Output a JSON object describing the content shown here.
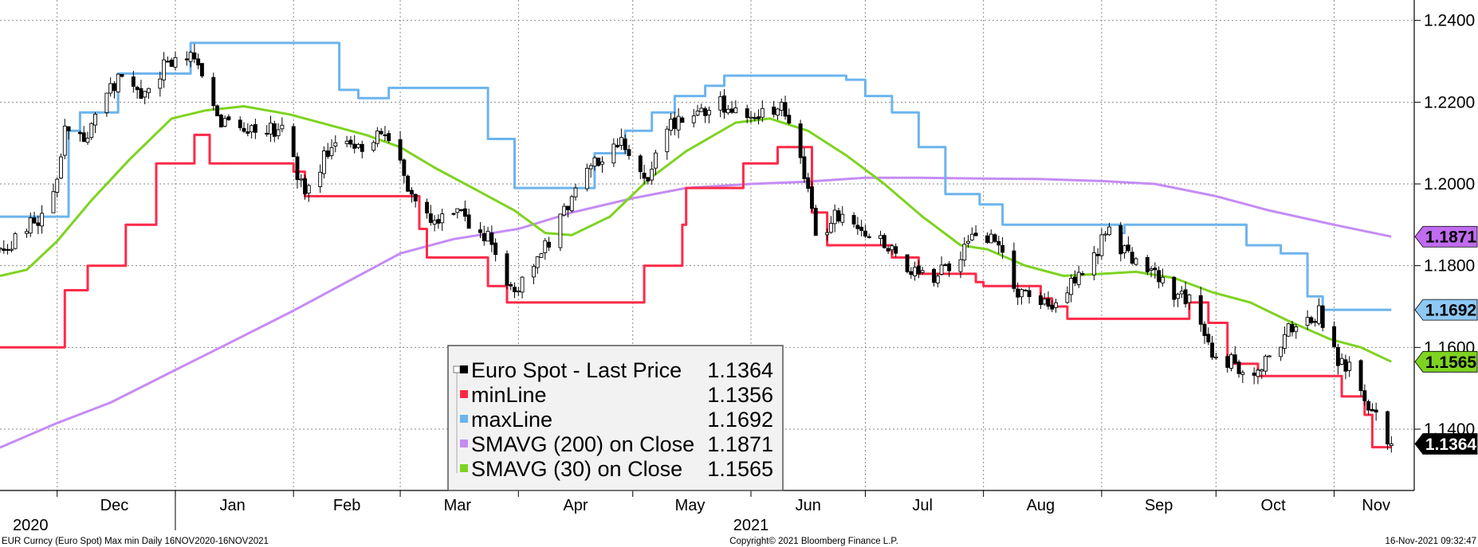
{
  "chart_data": {
    "type": "line",
    "title": "",
    "xlabel": "",
    "ylabel": "",
    "ylim": [
      1.125,
      1.245
    ],
    "xlim": [
      "2020-11-16",
      "2021-11-22"
    ],
    "y_ticks": [
      "1.1400",
      "1.1600",
      "1.1800",
      "1.2000",
      "1.2200",
      "1.2400"
    ],
    "y_tick_values": [
      1.14,
      1.16,
      1.18,
      1.2,
      1.22,
      1.24
    ],
    "month_ticks": [
      {
        "label": "Dec",
        "boundary": "2020-12-01",
        "center": "2020-12-16"
      },
      {
        "label": "Jan",
        "boundary": "2021-01-01",
        "center": "2021-01-16"
      },
      {
        "label": "Feb",
        "boundary": "2021-02-01",
        "center": "2021-02-15"
      },
      {
        "label": "Mar",
        "boundary": "2021-03-01",
        "center": "2021-03-16"
      },
      {
        "label": "Apr",
        "boundary": "2021-04-01",
        "center": "2021-04-16"
      },
      {
        "label": "May",
        "boundary": "2021-05-01",
        "center": "2021-05-16"
      },
      {
        "label": "Jun",
        "boundary": "2021-06-01",
        "center": "2021-06-16"
      },
      {
        "label": "Jul",
        "boundary": "2021-07-01",
        "center": "2021-07-16"
      },
      {
        "label": "Aug",
        "boundary": "2021-08-01",
        "center": "2021-08-16"
      },
      {
        "label": "Sep",
        "boundary": "2021-09-01",
        "center": "2021-09-16"
      },
      {
        "label": "Oct",
        "boundary": "2021-10-01",
        "center": "2021-10-16"
      },
      {
        "label": "Nov",
        "boundary": "2021-11-01",
        "center": "2021-11-12"
      }
    ],
    "year_labels": [
      {
        "label": "2020",
        "date": "2020-11-24"
      },
      {
        "label": "2021",
        "date": "2021-06-01"
      }
    ],
    "year_boundary": "2021-01-01",
    "grid": true,
    "legend_position": "bottom-center",
    "series": [
      {
        "name": "Euro Spot - Last Price",
        "legend_value": "1.1364",
        "style": "candlestick",
        "color": "#000000",
        "anchors": [
          [
            "2020-11-16",
            1.184
          ],
          [
            "2020-11-23",
            1.189
          ],
          [
            "2020-11-30",
            1.196
          ],
          [
            "2020-12-03",
            1.212
          ],
          [
            "2020-12-08",
            1.21
          ],
          [
            "2020-12-17",
            1.226
          ],
          [
            "2020-12-22",
            1.222
          ],
          [
            "2020-12-30",
            1.229
          ],
          [
            "2021-01-06",
            1.232
          ],
          [
            "2021-01-12",
            1.216
          ],
          [
            "2021-01-20",
            1.212
          ],
          [
            "2021-01-29",
            1.214
          ],
          [
            "2021-02-04",
            1.197
          ],
          [
            "2021-02-12",
            1.212
          ],
          [
            "2021-02-18",
            1.209
          ],
          [
            "2021-02-25",
            1.214
          ],
          [
            "2021-03-04",
            1.198
          ],
          [
            "2021-03-09",
            1.19
          ],
          [
            "2021-03-17",
            1.192
          ],
          [
            "2021-03-22",
            1.19
          ],
          [
            "2021-03-31",
            1.173
          ],
          [
            "2021-04-05",
            1.181
          ],
          [
            "2021-04-12",
            1.191
          ],
          [
            "2021-04-19",
            1.203
          ],
          [
            "2021-04-29",
            1.21
          ],
          [
            "2021-05-05",
            1.201
          ],
          [
            "2021-05-10",
            1.214
          ],
          [
            "2021-05-19",
            1.218
          ],
          [
            "2021-05-26",
            1.22
          ],
          [
            "2021-06-03",
            1.217
          ],
          [
            "2021-06-10",
            1.218
          ],
          [
            "2021-06-16",
            1.2
          ],
          [
            "2021-06-18",
            1.188
          ],
          [
            "2021-06-25",
            1.193
          ],
          [
            "2021-07-06",
            1.186
          ],
          [
            "2021-07-13",
            1.178
          ],
          [
            "2021-07-23",
            1.178
          ],
          [
            "2021-07-30",
            1.189
          ],
          [
            "2021-08-05",
            1.184
          ],
          [
            "2021-08-11",
            1.172
          ],
          [
            "2021-08-20",
            1.17
          ],
          [
            "2021-08-27",
            1.18
          ],
          [
            "2021-09-03",
            1.188
          ],
          [
            "2021-09-08",
            1.183
          ],
          [
            "2021-09-17",
            1.176
          ],
          [
            "2021-09-24",
            1.171
          ],
          [
            "2021-09-30",
            1.158
          ],
          [
            "2021-10-06",
            1.156
          ],
          [
            "2021-10-12",
            1.155
          ],
          [
            "2021-10-20",
            1.164
          ],
          [
            "2021-10-28",
            1.168
          ],
          [
            "2021-11-01",
            1.158
          ],
          [
            "2021-11-05",
            1.155
          ],
          [
            "2021-11-10",
            1.146
          ],
          [
            "2021-11-12",
            1.144
          ],
          [
            "2021-11-16",
            1.1364
          ]
        ]
      },
      {
        "name": "minLine",
        "legend_value": "1.1356",
        "style": "step",
        "color": "#ff2a48",
        "points": [
          [
            "2020-11-16",
            1.16
          ],
          [
            "2020-12-02",
            1.16
          ],
          [
            "2020-12-03",
            1.174
          ],
          [
            "2020-12-08",
            1.174
          ],
          [
            "2020-12-09",
            1.18
          ],
          [
            "2020-12-18",
            1.18
          ],
          [
            "2020-12-19",
            1.19
          ],
          [
            "2020-12-26",
            1.19
          ],
          [
            "2020-12-27",
            1.205
          ],
          [
            "2021-01-05",
            1.205
          ],
          [
            "2021-01-06",
            1.212
          ],
          [
            "2021-01-09",
            1.212
          ],
          [
            "2021-01-10",
            1.205
          ],
          [
            "2021-01-30",
            1.205
          ],
          [
            "2021-02-01",
            1.203
          ],
          [
            "2021-02-04",
            1.197
          ],
          [
            "2021-02-24",
            1.197
          ],
          [
            "2021-03-03",
            1.197
          ],
          [
            "2021-03-06",
            1.189
          ],
          [
            "2021-03-08",
            1.182
          ],
          [
            "2021-03-18",
            1.182
          ],
          [
            "2021-03-24",
            1.175
          ],
          [
            "2021-03-29",
            1.171
          ],
          [
            "2021-04-30",
            1.171
          ],
          [
            "2021-05-04",
            1.18
          ],
          [
            "2021-05-14",
            1.19
          ],
          [
            "2021-05-15",
            1.199
          ],
          [
            "2021-05-29",
            1.199
          ],
          [
            "2021-05-30",
            1.205
          ],
          [
            "2021-06-07",
            1.205
          ],
          [
            "2021-06-08",
            1.209
          ],
          [
            "2021-06-15",
            1.209
          ],
          [
            "2021-06-17",
            1.193
          ],
          [
            "2021-06-21",
            1.185
          ],
          [
            "2021-07-05",
            1.185
          ],
          [
            "2021-07-08",
            1.182
          ],
          [
            "2021-07-15",
            1.178
          ],
          [
            "2021-07-30",
            1.176
          ],
          [
            "2021-08-01",
            1.175
          ],
          [
            "2021-08-09",
            1.175
          ],
          [
            "2021-08-16",
            1.172
          ],
          [
            "2021-08-19",
            1.17
          ],
          [
            "2021-08-23",
            1.167
          ],
          [
            "2021-09-15",
            1.167
          ],
          [
            "2021-09-20",
            1.167
          ],
          [
            "2021-09-24",
            1.171
          ],
          [
            "2021-09-29",
            1.166
          ],
          [
            "2021-10-04",
            1.156
          ],
          [
            "2021-10-12",
            1.153
          ],
          [
            "2021-10-14",
            1.153
          ],
          [
            "2021-11-01",
            1.153
          ],
          [
            "2021-11-03",
            1.148
          ],
          [
            "2021-11-09",
            1.1435
          ],
          [
            "2021-11-11",
            1.1356
          ],
          [
            "2021-11-16",
            1.1356
          ]
        ]
      },
      {
        "name": "maxLine",
        "legend_value": "1.1692",
        "style": "step",
        "color": "#6cb4ee",
        "points": [
          [
            "2020-11-16",
            1.192
          ],
          [
            "2020-12-01",
            1.192
          ],
          [
            "2020-12-04",
            1.213
          ],
          [
            "2020-12-07",
            1.2175
          ],
          [
            "2020-12-16",
            1.2175
          ],
          [
            "2020-12-17",
            1.227
          ],
          [
            "2020-12-31",
            1.227
          ],
          [
            "2021-01-05",
            1.2345
          ],
          [
            "2021-02-09",
            1.2345
          ],
          [
            "2021-02-13",
            1.223
          ],
          [
            "2021-02-18",
            1.221
          ],
          [
            "2021-02-24",
            1.221
          ],
          [
            "2021-02-26",
            1.2235
          ],
          [
            "2021-03-22",
            1.2235
          ],
          [
            "2021-03-24",
            1.211
          ],
          [
            "2021-03-31",
            1.199
          ],
          [
            "2021-04-08",
            1.199
          ],
          [
            "2021-04-14",
            1.199
          ],
          [
            "2021-04-21",
            1.2075
          ],
          [
            "2021-04-29",
            1.213
          ],
          [
            "2021-05-06",
            1.2175
          ],
          [
            "2021-05-12",
            1.2215
          ],
          [
            "2021-05-20",
            1.224
          ],
          [
            "2021-05-25",
            1.2265
          ],
          [
            "2021-06-20",
            1.2265
          ],
          [
            "2021-06-26",
            1.2255
          ],
          [
            "2021-07-01",
            1.2215
          ],
          [
            "2021-07-08",
            1.2175
          ],
          [
            "2021-07-15",
            1.209
          ],
          [
            "2021-07-22",
            1.1975
          ],
          [
            "2021-07-31",
            1.195
          ],
          [
            "2021-08-06",
            1.19
          ],
          [
            "2021-09-03",
            1.19
          ],
          [
            "2021-09-06",
            1.188
          ],
          [
            "2021-09-07",
            1.19
          ],
          [
            "2021-10-04",
            1.19
          ],
          [
            "2021-10-09",
            1.185
          ],
          [
            "2021-10-18",
            1.183
          ],
          [
            "2021-10-25",
            1.1725
          ],
          [
            "2021-10-29",
            1.1692
          ],
          [
            "2021-11-16",
            1.1692
          ]
        ]
      },
      {
        "name": "SMAVG (200)  on Close",
        "legend_value": "1.1871",
        "style": "line",
        "color": "#c58cf4",
        "points": [
          [
            "2020-11-16",
            1.1355
          ],
          [
            "2020-12-01",
            1.1415
          ],
          [
            "2020-12-15",
            1.1465
          ],
          [
            "2021-01-01",
            1.1545
          ],
          [
            "2021-01-15",
            1.161
          ],
          [
            "2021-02-01",
            1.169
          ],
          [
            "2021-02-15",
            1.176
          ],
          [
            "2021-03-01",
            1.183
          ],
          [
            "2021-03-15",
            1.1865
          ],
          [
            "2021-04-01",
            1.189
          ],
          [
            "2021-04-15",
            1.193
          ],
          [
            "2021-05-01",
            1.1965
          ],
          [
            "2021-05-15",
            1.199
          ],
          [
            "2021-06-01",
            1.2
          ],
          [
            "2021-06-15",
            1.2005
          ],
          [
            "2021-07-01",
            1.2015
          ],
          [
            "2021-07-15",
            1.2015
          ],
          [
            "2021-08-01",
            1.2013
          ],
          [
            "2021-08-15",
            1.2012
          ],
          [
            "2021-09-01",
            1.2007
          ],
          [
            "2021-09-15",
            1.2
          ],
          [
            "2021-10-01",
            1.197
          ],
          [
            "2021-10-15",
            1.1935
          ],
          [
            "2021-11-01",
            1.19
          ],
          [
            "2021-11-16",
            1.1871
          ]
        ]
      },
      {
        "name": "SMAVG (30)  on Close",
        "legend_value": "1.1565",
        "style": "line",
        "color": "#7ed321",
        "points": [
          [
            "2020-11-16",
            1.1775
          ],
          [
            "2020-11-23",
            1.179
          ],
          [
            "2020-12-01",
            1.186
          ],
          [
            "2020-12-10",
            1.196
          ],
          [
            "2020-12-20",
            1.206
          ],
          [
            "2020-12-31",
            1.216
          ],
          [
            "2021-01-09",
            1.218
          ],
          [
            "2021-01-19",
            1.219
          ],
          [
            "2021-01-31",
            1.217
          ],
          [
            "2021-02-10",
            1.2145
          ],
          [
            "2021-02-20",
            1.212
          ],
          [
            "2021-03-01",
            1.209
          ],
          [
            "2021-03-10",
            1.204
          ],
          [
            "2021-03-20",
            1.199
          ],
          [
            "2021-03-31",
            1.1935
          ],
          [
            "2021-04-08",
            1.188
          ],
          [
            "2021-04-15",
            1.1875
          ],
          [
            "2021-04-25",
            1.192
          ],
          [
            "2021-05-05",
            1.201
          ],
          [
            "2021-05-15",
            1.208
          ],
          [
            "2021-05-28",
            1.215
          ],
          [
            "2021-06-06",
            1.216
          ],
          [
            "2021-06-16",
            1.213
          ],
          [
            "2021-06-26",
            1.207
          ],
          [
            "2021-07-06",
            1.2
          ],
          [
            "2021-07-16",
            1.192
          ],
          [
            "2021-07-26",
            1.185
          ],
          [
            "2021-08-02",
            1.184
          ],
          [
            "2021-08-12",
            1.18
          ],
          [
            "2021-08-22",
            1.1775
          ],
          [
            "2021-09-01",
            1.178
          ],
          [
            "2021-09-10",
            1.1785
          ],
          [
            "2021-09-20",
            1.177
          ],
          [
            "2021-09-30",
            1.1735
          ],
          [
            "2021-10-10",
            1.171
          ],
          [
            "2021-10-20",
            1.1665
          ],
          [
            "2021-10-31",
            1.162
          ],
          [
            "2021-11-08",
            1.16
          ],
          [
            "2021-11-16",
            1.1565
          ]
        ]
      }
    ],
    "right_tags": [
      {
        "value": 1.1871,
        "label": "1.1871",
        "bg": "#c06bf0",
        "fg": "#000000"
      },
      {
        "value": 1.1692,
        "label": "1.1692",
        "bg": "#8ec8f5",
        "fg": "#000000"
      },
      {
        "value": 1.1565,
        "label": "1.1565",
        "bg": "#7ed321",
        "fg": "#000000"
      },
      {
        "value": 1.1364,
        "label": "1.1364",
        "bg": "#000000",
        "fg": "#ffffff"
      }
    ]
  },
  "footer": {
    "left": "EUR Curncy (Euro Spot) Max min  Daily 16NOV2020-16NOV2021",
    "center": "Copyright© 2021 Bloomberg Finance L.P.",
    "right": "16-Nov-2021 09:32:47"
  }
}
